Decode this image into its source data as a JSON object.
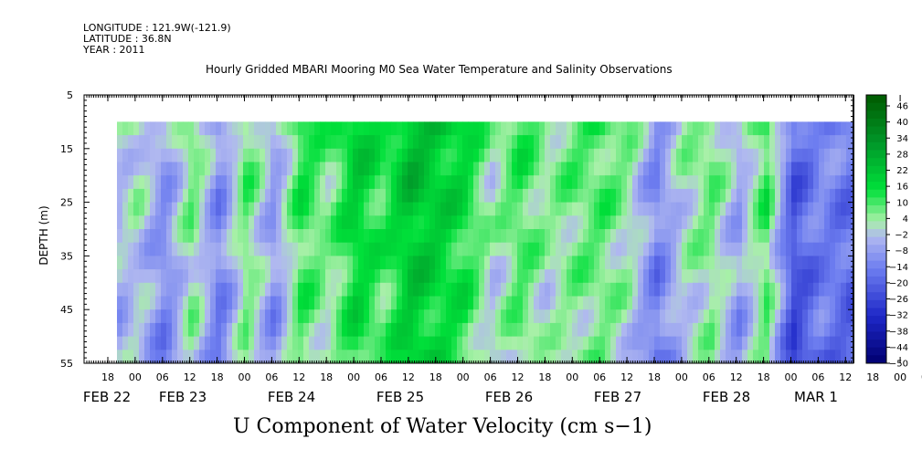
{
  "header": {
    "longitude": "LONGITUDE : 121.9W(-121.9)",
    "latitude": "LATITUDE : 36.8N",
    "year": "YEAR : 2011"
  },
  "title": "Hourly Gridded MBARI Mooring M0 Sea Water Temperature and Salinity Observations",
  "bottom_title": "U Component of Water Velocity (cm s−1)",
  "chart_data": {
    "type": "heatmap",
    "variable": "U Component of Water Velocity",
    "units": "cm s-1",
    "ylabel": "DEPTH (m)",
    "ylim": [
      55,
      5
    ],
    "y_ticks": [
      "5",
      "15",
      "25",
      "35",
      "45",
      "55"
    ],
    "data_depth_range": [
      10,
      55
    ],
    "x_hour_ticks": [
      "18",
      "00",
      "06",
      "12",
      "18",
      "00",
      "06",
      "12",
      "18",
      "00",
      "06",
      "12",
      "18",
      "00",
      "06",
      "12",
      "18",
      "00",
      "06",
      "12",
      "18",
      "00",
      "06",
      "12",
      "18",
      "00",
      "06",
      "12",
      "18",
      "00",
      "06",
      "12"
    ],
    "x_day_labels": [
      "FEB 22",
      "FEB 23",
      "FEB 24",
      "FEB 25",
      "FEB 26",
      "FEB 27",
      "FEB 28",
      "MAR  1"
    ],
    "colorbar_labels": [
      "46",
      "40",
      "34",
      "28",
      "22",
      "16",
      "10",
      "4",
      "−2",
      "−8",
      "−14",
      "−20",
      "−26",
      "−32",
      "−38",
      "−44",
      "−50"
    ],
    "colorbar_levels": [
      -50,
      52
    ],
    "colors": {
      "positive_strong": "#006400",
      "positive": "#00e03a",
      "positive_light": "#a8f0a8",
      "negative_light": "#b0b8f0",
      "negative": "#6e7ef0",
      "negative_strong": "#000070"
    },
    "day_profile": [
      {
        "day": "FEB 22 18",
        "u": -2
      },
      {
        "day": "FEB 23 00",
        "u": 4
      },
      {
        "day": "FEB 23 06",
        "u": -8
      },
      {
        "day": "FEB 23 12",
        "u": 10
      },
      {
        "day": "FEB 23 18",
        "u": -10
      },
      {
        "day": "FEB 24 00",
        "u": 12
      },
      {
        "day": "FEB 24 06",
        "u": -6
      },
      {
        "day": "FEB 24 12",
        "u": 16
      },
      {
        "day": "FEB 24 18",
        "u": 8
      },
      {
        "day": "FEB 25 00",
        "u": 22
      },
      {
        "day": "FEB 25 06",
        "u": 14
      },
      {
        "day": "FEB 25 12",
        "u": 26
      },
      {
        "day": "FEB 25 18",
        "u": 22
      },
      {
        "day": "FEB 26 00",
        "u": 18
      },
      {
        "day": "FEB 26 06",
        "u": 4
      },
      {
        "day": "FEB 26 12",
        "u": 14
      },
      {
        "day": "FEB 26 18",
        "u": 6
      },
      {
        "day": "FEB 27 00",
        "u": 10
      },
      {
        "day": "FEB 27 06",
        "u": 12
      },
      {
        "day": "FEB 27 12",
        "u": 6
      },
      {
        "day": "FEB 27 18",
        "u": -10
      },
      {
        "day": "FEB 28 00",
        "u": 4
      },
      {
        "day": "FEB 28 06",
        "u": 10
      },
      {
        "day": "FEB 28 12",
        "u": -4
      },
      {
        "day": "FEB 28 18",
        "u": 14
      },
      {
        "day": "MAR 1 00",
        "u": -20
      },
      {
        "day": "MAR 1 06",
        "u": -10
      },
      {
        "day": "MAR 1 12",
        "u": -14
      }
    ]
  }
}
